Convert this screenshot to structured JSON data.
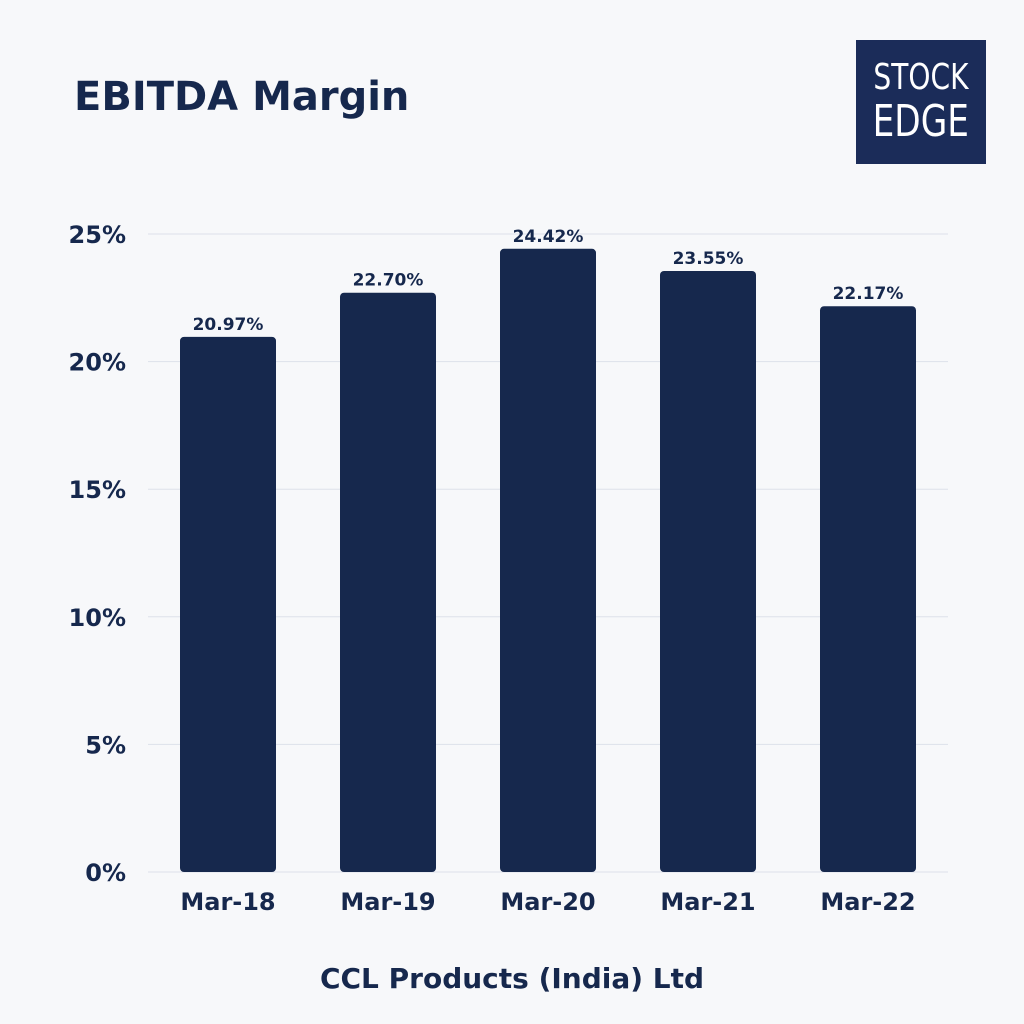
{
  "title": "EBITDA Margin",
  "logo": {
    "line1": "STOCK",
    "line2": "EDGE"
  },
  "caption": "CCL Products (India) Ltd",
  "colors": {
    "bar": "#16284d",
    "grid": "#dde1ea",
    "text": "#16284d",
    "background": "#f7f8fa"
  },
  "chart_data": {
    "type": "bar",
    "categories": [
      "Mar-18",
      "Mar-19",
      "Mar-20",
      "Mar-21",
      "Mar-22"
    ],
    "values": [
      20.97,
      22.7,
      24.42,
      23.55,
      22.17
    ],
    "data_labels": [
      "20.97%",
      "22.70%",
      "24.42%",
      "23.55%",
      "22.17%"
    ],
    "ylim": [
      0,
      25
    ],
    "yticks": [
      0,
      5,
      10,
      15,
      20,
      25
    ],
    "ytick_labels": [
      "0%",
      "5%",
      "10%",
      "15%",
      "20%",
      "25%"
    ],
    "grid": true,
    "legend": "none"
  }
}
